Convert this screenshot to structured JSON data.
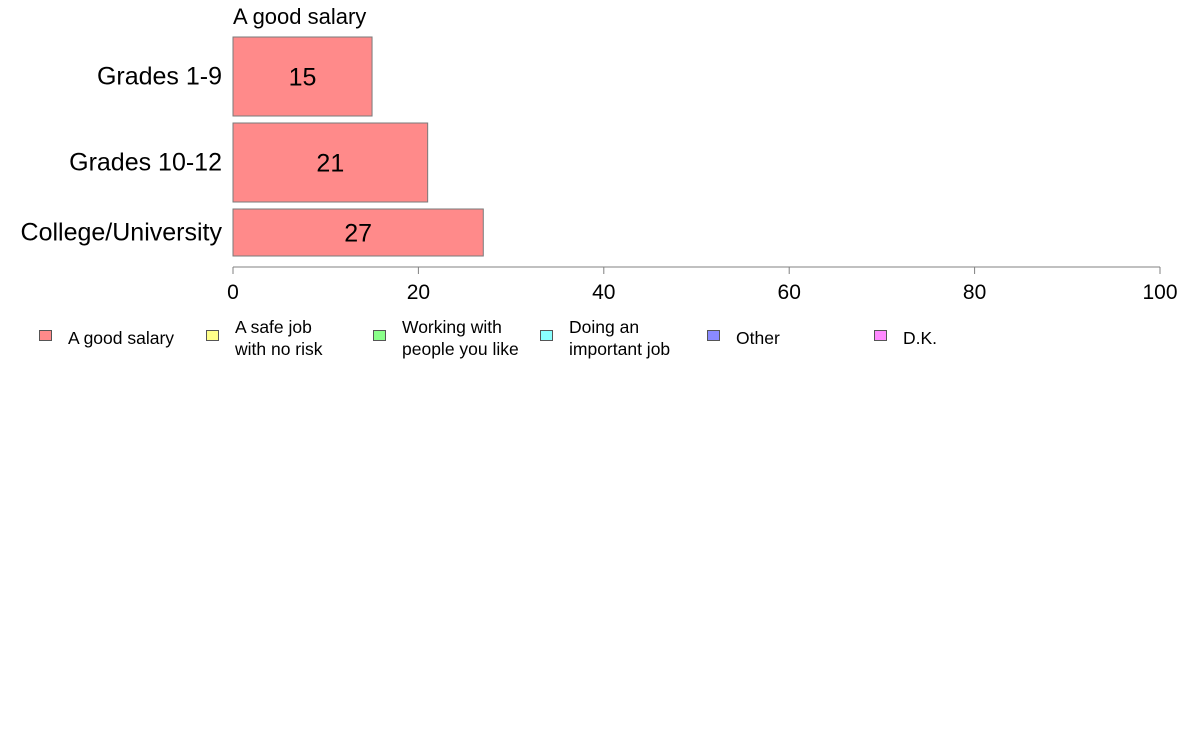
{
  "chart_data": {
    "type": "bar",
    "orientation": "horizontal",
    "title": "A good salary",
    "categories": [
      "Grades 1-9",
      "Grades 10-12",
      "College/University"
    ],
    "series": [
      {
        "name": "A good salary",
        "values": [
          15,
          21,
          27
        ],
        "color": "#ff8a8a"
      }
    ],
    "data_labels": [
      "15",
      "21",
      "27"
    ],
    "xlim": [
      0,
      100
    ],
    "xticks": [
      0,
      20,
      40,
      60,
      80,
      100
    ],
    "grid": false,
    "legend_position": "bottom"
  },
  "legend": [
    {
      "label": "A good salary",
      "color": "#ff8a8a"
    },
    {
      "label": "A safe job\nwith no risk",
      "color": "#ffff8a"
    },
    {
      "label": "Working with\npeople you like",
      "color": "#8aff8a"
    },
    {
      "label": "Doing an\nimportant job",
      "color": "#8affff"
    },
    {
      "label": "Other",
      "color": "#8a8aff"
    },
    {
      "label": "D.K.",
      "color": "#ff8aff"
    }
  ]
}
